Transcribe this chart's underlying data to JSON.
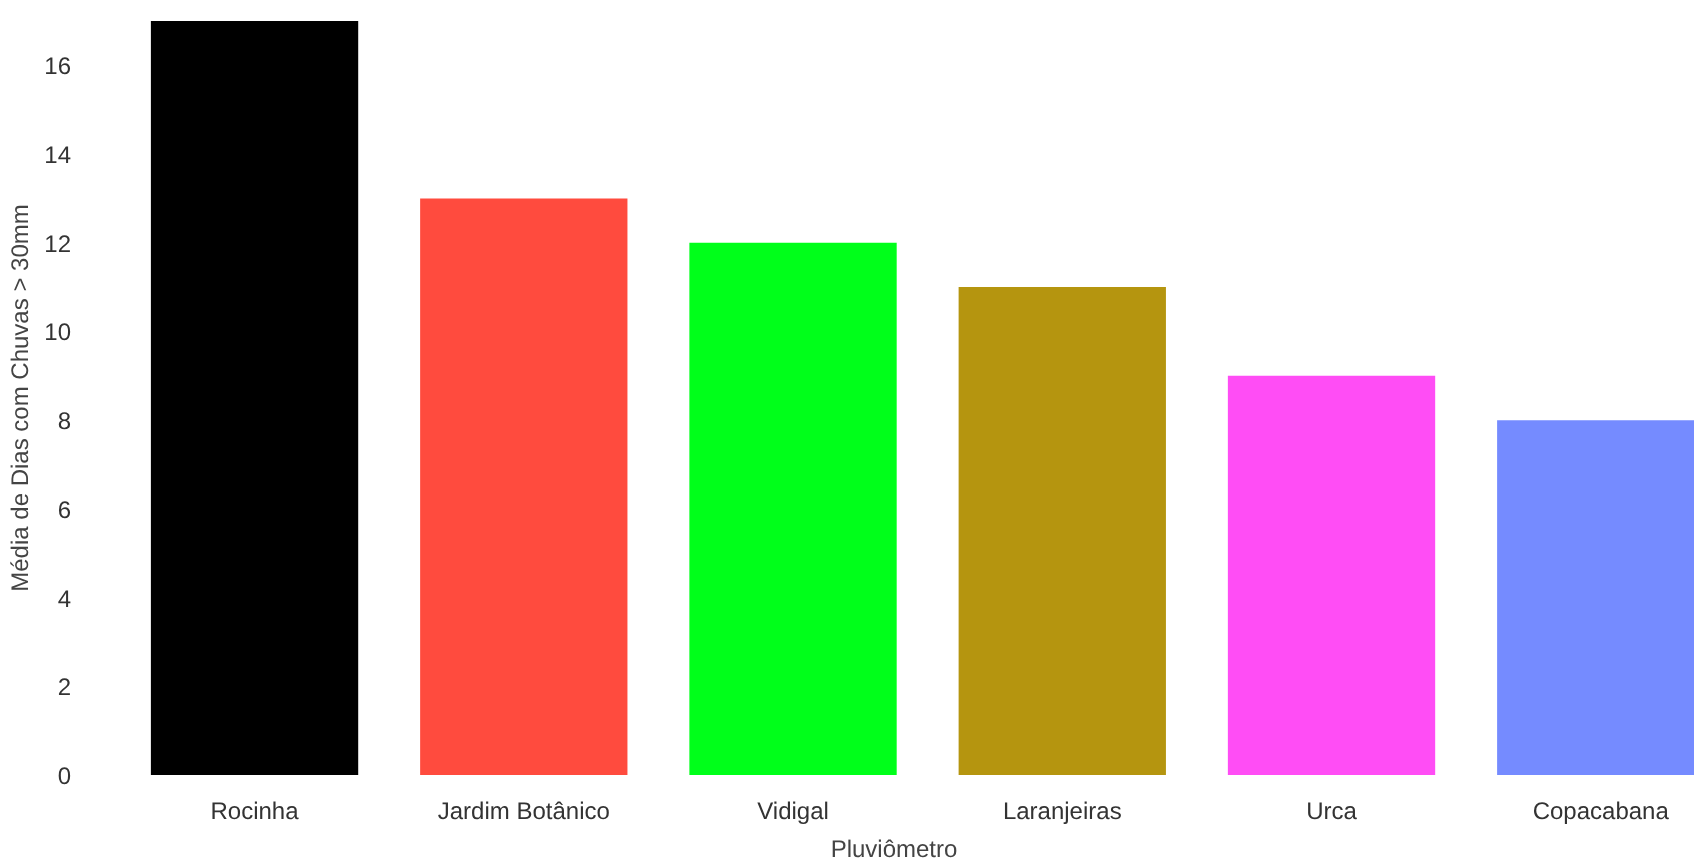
{
  "chart_data": {
    "type": "bar",
    "xlabel": "Pluviômetro",
    "ylabel": "Média de Dias com Chuvas > 30mm",
    "categories": [
      "Rocinha",
      "Jardim Botânico",
      "Vidigal",
      "Laranjeiras",
      "Urca",
      "Copacabana"
    ],
    "values": [
      17,
      13,
      12,
      11,
      9,
      8
    ],
    "colors": [
      "#000000",
      "#ff4b3e",
      "#00ff1a",
      "#b5950f",
      "#ff4df5",
      "#758bff"
    ],
    "ylim": [
      0,
      17
    ],
    "yticks": [
      0,
      2,
      4,
      6,
      8,
      10,
      12,
      14,
      16
    ],
    "grid": false
  }
}
